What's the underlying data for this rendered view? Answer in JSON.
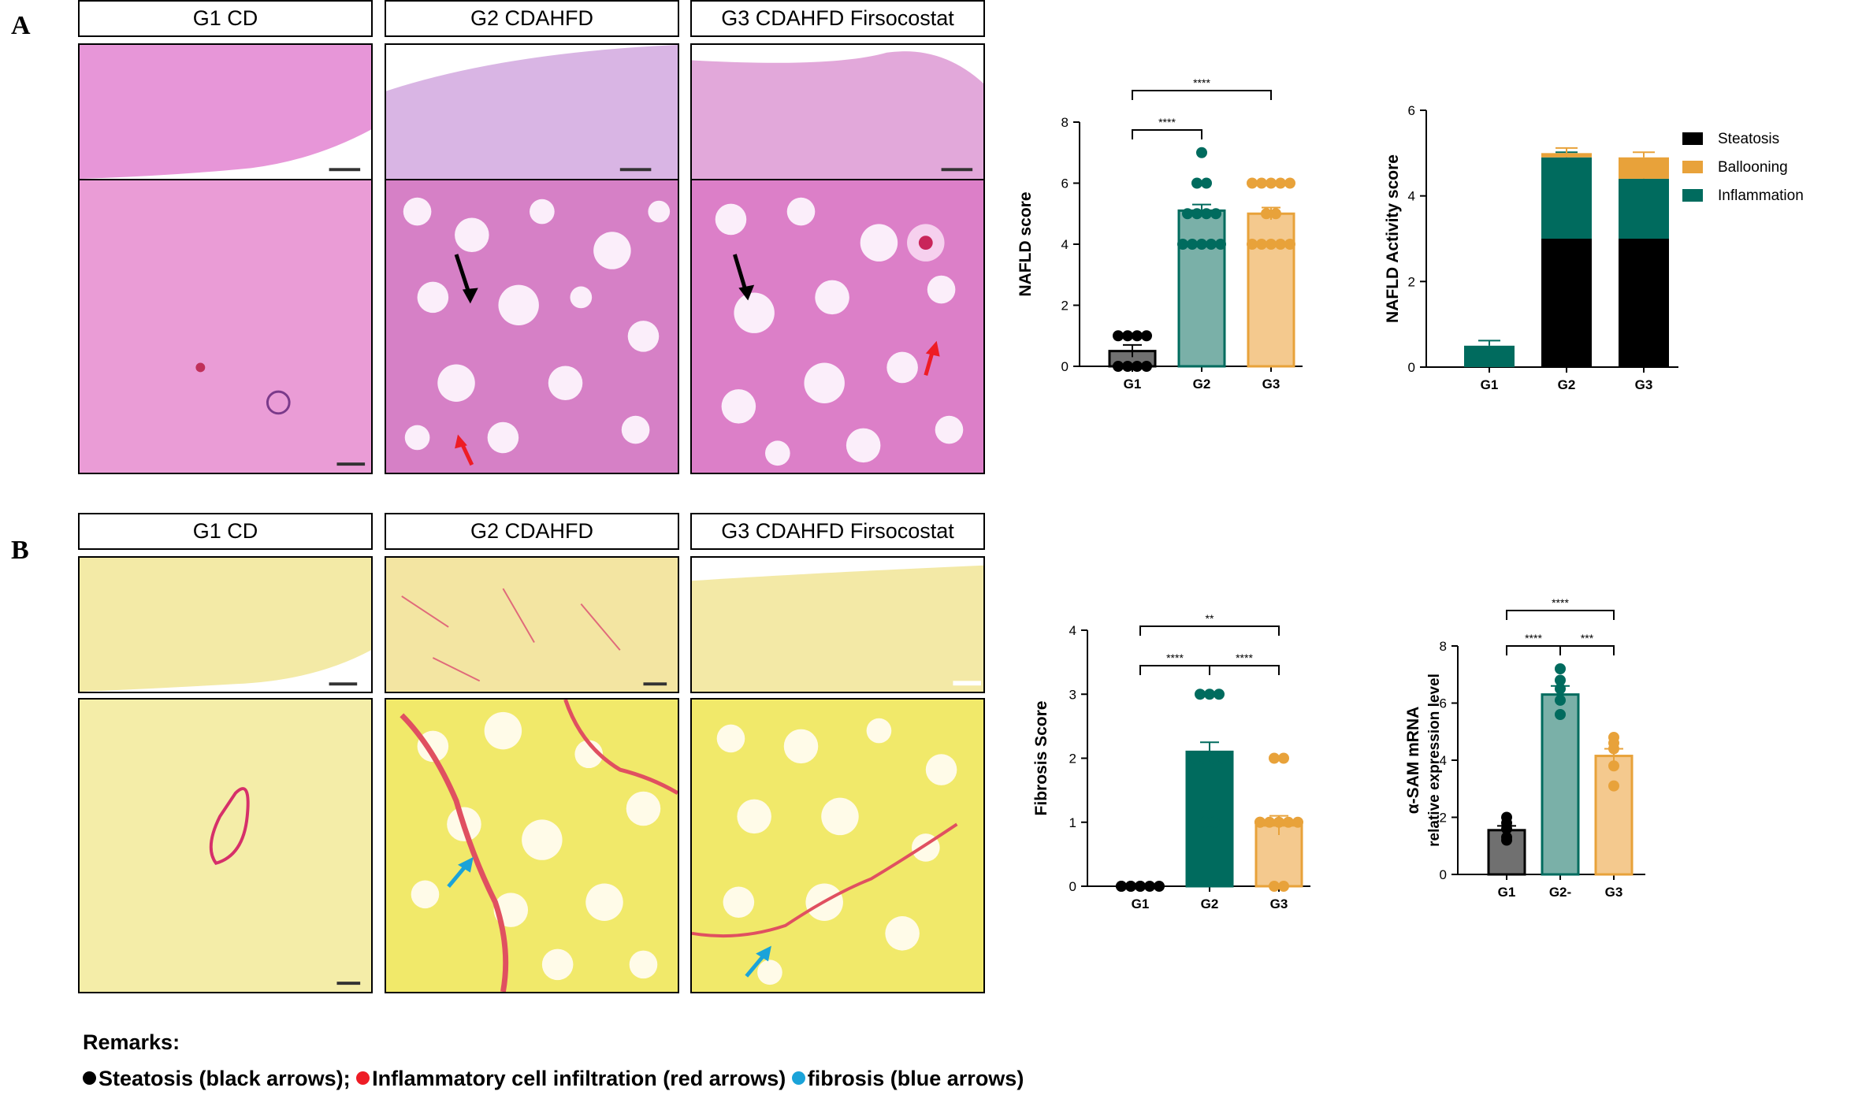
{
  "panels": [
    {
      "label": "A",
      "headers": [
        "G1 CD",
        "G2 CDAHFD",
        "G3 CDAHFD Firsocostat"
      ]
    },
    {
      "label": "B",
      "headers": [
        "G1 CD",
        "G2 CDAHFD",
        "G3 CDAHFD Firsocostat"
      ]
    }
  ],
  "colors": {
    "gray": "#707070",
    "teal": "#006b5e",
    "teal_light": "#7ab0a8",
    "orange": "#e8a23a",
    "orange_light": "#f4c98e",
    "black": "#000000",
    "red_arrow": "#ee1c25",
    "blue_arrow": "#1aa3d9",
    "black_arrow": "#000000",
    "he_stain": "#e88fd0",
    "sirius_stain": "#f2eb9a"
  },
  "remarks": {
    "title": "Remarks:",
    "items": [
      {
        "text": "Steatosis (black arrows);",
        "color": "#000000"
      },
      {
        "text": "Inflammatory cell infiltration (red arrows)",
        "color": "#ee1c25"
      },
      {
        "text": "fibrosis (blue arrows)",
        "color": "#1aa3d9"
      }
    ]
  },
  "chart_data": [
    {
      "type": "bar",
      "ylabel": "NAFLD score",
      "categories": [
        "G1",
        "G2",
        "G3"
      ],
      "values": [
        0.5,
        5.1,
        5.0
      ],
      "errors": [
        0.2,
        0.2,
        0.2
      ],
      "points": [
        [
          0,
          0,
          0,
          0,
          1,
          1,
          1,
          1
        ],
        [
          7,
          6,
          6,
          5,
          5,
          5,
          5,
          4,
          4,
          4,
          4,
          4
        ],
        [
          6,
          6,
          6,
          6,
          6,
          5,
          5,
          4,
          4,
          4,
          4,
          4
        ]
      ],
      "ylim": [
        0,
        8
      ],
      "yticks": [
        0,
        2,
        4,
        6,
        8
      ],
      "significance": [
        {
          "from": 0,
          "to": 1,
          "label": "****"
        },
        {
          "from": 0,
          "to": 2,
          "label": "****"
        }
      ]
    },
    {
      "type": "bar",
      "stacked": true,
      "ylabel": "NAFLD Activity score",
      "categories": [
        "G1",
        "G2",
        "G3"
      ],
      "series": [
        {
          "name": "Steatosis",
          "values": [
            0,
            3.0,
            3.0
          ]
        },
        {
          "name": "Inflammation",
          "values": [
            0.5,
            1.9,
            1.4
          ]
        },
        {
          "name": "Ballooning",
          "values": [
            0,
            0.1,
            0.5
          ]
        }
      ],
      "ylim": [
        0,
        6
      ],
      "yticks": [
        0,
        2,
        4,
        6
      ],
      "legend": [
        "Steatosis",
        "Ballooning",
        "Inflammation"
      ]
    },
    {
      "type": "bar",
      "ylabel": "Fibrosis Score",
      "categories": [
        "G1",
        "G2",
        "G3"
      ],
      "values": [
        0.0,
        2.1,
        0.95
      ],
      "errors": [
        0.0,
        0.15,
        0.15
      ],
      "points": [
        [
          0,
          0,
          0,
          0,
          0,
          0,
          0,
          0
        ],
        [
          3,
          3,
          3,
          2,
          2,
          2,
          2,
          1,
          1
        ],
        [
          2,
          2,
          1,
          1,
          1,
          1,
          1,
          1,
          0,
          0
        ]
      ],
      "ylim": [
        0,
        4
      ],
      "yticks": [
        0,
        1,
        2,
        3,
        4
      ],
      "significance": [
        {
          "from": 0,
          "to": 1,
          "label": "****"
        },
        {
          "from": 1,
          "to": 2,
          "label": "****"
        },
        {
          "from": 0,
          "to": 2,
          "label": "**"
        }
      ]
    },
    {
      "type": "bar",
      "ylabel": "α-SAM mRNA",
      "ylabel2": "relative expression level",
      "categories": [
        "G1",
        "G2-",
        "G3"
      ],
      "values": [
        1.55,
        6.3,
        4.15
      ],
      "errors": [
        0.15,
        0.3,
        0.25
      ],
      "points": [
        [
          2.0,
          1.8,
          1.6,
          1.3,
          1.2
        ],
        [
          7.2,
          6.8,
          6.5,
          6.1,
          5.6
        ],
        [
          4.8,
          4.6,
          4.4,
          3.8,
          3.1
        ]
      ],
      "ylim": [
        0,
        8
      ],
      "yticks": [
        0,
        2,
        4,
        6,
        8
      ],
      "significance": [
        {
          "from": 0,
          "to": 1,
          "label": "****"
        },
        {
          "from": 1,
          "to": 2,
          "label": "***"
        },
        {
          "from": 0,
          "to": 2,
          "label": "****"
        }
      ]
    }
  ]
}
